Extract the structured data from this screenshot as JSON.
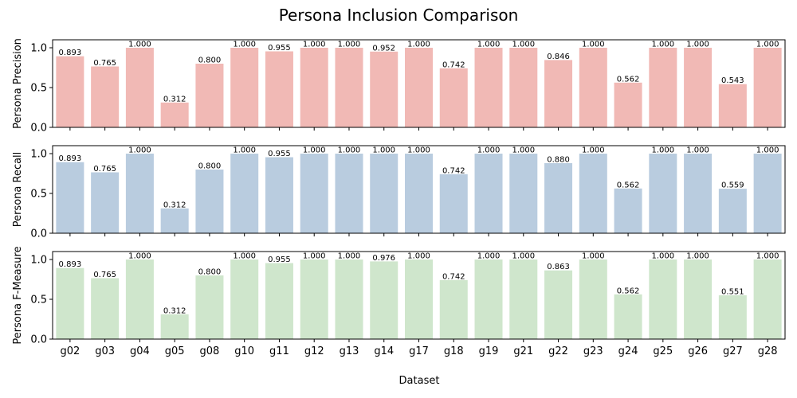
{
  "figure": {
    "title": "Persona Inclusion Comparison",
    "xlabel": "Dataset"
  },
  "chart_data": [
    {
      "type": "bar",
      "title": "",
      "ylabel": "Persona Precision",
      "ylim": [
        0,
        1.1
      ],
      "yticks": [
        "0.0",
        "0.5",
        "1.0"
      ],
      "color": "#f1b9b5",
      "categories": [
        "g02",
        "g03",
        "g04",
        "g05",
        "g08",
        "g10",
        "g11",
        "g12",
        "g13",
        "g14",
        "g17",
        "g18",
        "g19",
        "g21",
        "g22",
        "g23",
        "g24",
        "g25",
        "g26",
        "g27",
        "g28"
      ],
      "values": [
        0.893,
        0.765,
        1.0,
        0.312,
        0.8,
        1.0,
        0.955,
        1.0,
        1.0,
        0.952,
        1.0,
        0.742,
        1.0,
        1.0,
        0.846,
        1.0,
        0.562,
        1.0,
        1.0,
        0.543,
        1.0
      ],
      "labels": [
        "0.893",
        "0.765",
        "1.000",
        "0.312",
        "0.800",
        "1.000",
        "0.955",
        "1.000",
        "1.000",
        "0.952",
        "1.000",
        "0.742",
        "1.000",
        "1.000",
        "0.846",
        "1.000",
        "0.562",
        "1.000",
        "1.000",
        "0.543",
        "1.000"
      ]
    },
    {
      "type": "bar",
      "title": "",
      "ylabel": "Persona Recall",
      "ylim": [
        0,
        1.1
      ],
      "yticks": [
        "0.0",
        "0.5",
        "1.0"
      ],
      "color": "#b9ccdf",
      "categories": [
        "g02",
        "g03",
        "g04",
        "g05",
        "g08",
        "g10",
        "g11",
        "g12",
        "g13",
        "g14",
        "g17",
        "g18",
        "g19",
        "g21",
        "g22",
        "g23",
        "g24",
        "g25",
        "g26",
        "g27",
        "g28"
      ],
      "values": [
        0.893,
        0.765,
        1.0,
        0.312,
        0.8,
        1.0,
        0.955,
        1.0,
        1.0,
        1.0,
        1.0,
        0.742,
        1.0,
        1.0,
        0.88,
        1.0,
        0.562,
        1.0,
        1.0,
        0.559,
        1.0
      ],
      "labels": [
        "0.893",
        "0.765",
        "1.000",
        "0.312",
        "0.800",
        "1.000",
        "0.955",
        "1.000",
        "1.000",
        "1.000",
        "1.000",
        "0.742",
        "1.000",
        "1.000",
        "0.880",
        "1.000",
        "0.562",
        "1.000",
        "1.000",
        "0.559",
        "1.000"
      ]
    },
    {
      "type": "bar",
      "title": "",
      "ylabel": "Persona F-Measure",
      "ylim": [
        0,
        1.1
      ],
      "yticks": [
        "0.0",
        "0.5",
        "1.0"
      ],
      "color": "#cfe6cc",
      "categories": [
        "g02",
        "g03",
        "g04",
        "g05",
        "g08",
        "g10",
        "g11",
        "g12",
        "g13",
        "g14",
        "g17",
        "g18",
        "g19",
        "g21",
        "g22",
        "g23",
        "g24",
        "g25",
        "g26",
        "g27",
        "g28"
      ],
      "values": [
        0.893,
        0.765,
        1.0,
        0.312,
        0.8,
        1.0,
        0.955,
        1.0,
        1.0,
        0.976,
        1.0,
        0.742,
        1.0,
        1.0,
        0.863,
        1.0,
        0.562,
        1.0,
        1.0,
        0.551,
        1.0
      ],
      "labels": [
        "0.893",
        "0.765",
        "1.000",
        "0.312",
        "0.800",
        "1.000",
        "0.955",
        "1.000",
        "1.000",
        "0.976",
        "1.000",
        "0.742",
        "1.000",
        "1.000",
        "0.863",
        "1.000",
        "0.562",
        "1.000",
        "1.000",
        "0.551",
        "1.000"
      ]
    }
  ]
}
